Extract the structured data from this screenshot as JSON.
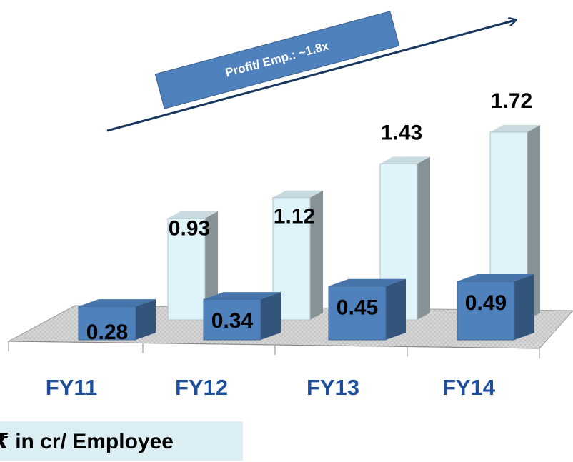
{
  "chart_data": {
    "type": "bar3d",
    "annotation": "Profit/ Emp.: ~1.8x",
    "unit_label": "₹ in cr/ Employee",
    "categories": [
      "FY11",
      "FY12",
      "FY13",
      "FY14"
    ],
    "series": [
      {
        "color": "#dff3fa",
        "values": [
          0.93,
          1.12,
          1.43,
          1.72
        ]
      },
      {
        "color": "#4f81bd",
        "values": [
          0.28,
          0.34,
          0.45,
          0.49
        ]
      }
    ]
  }
}
